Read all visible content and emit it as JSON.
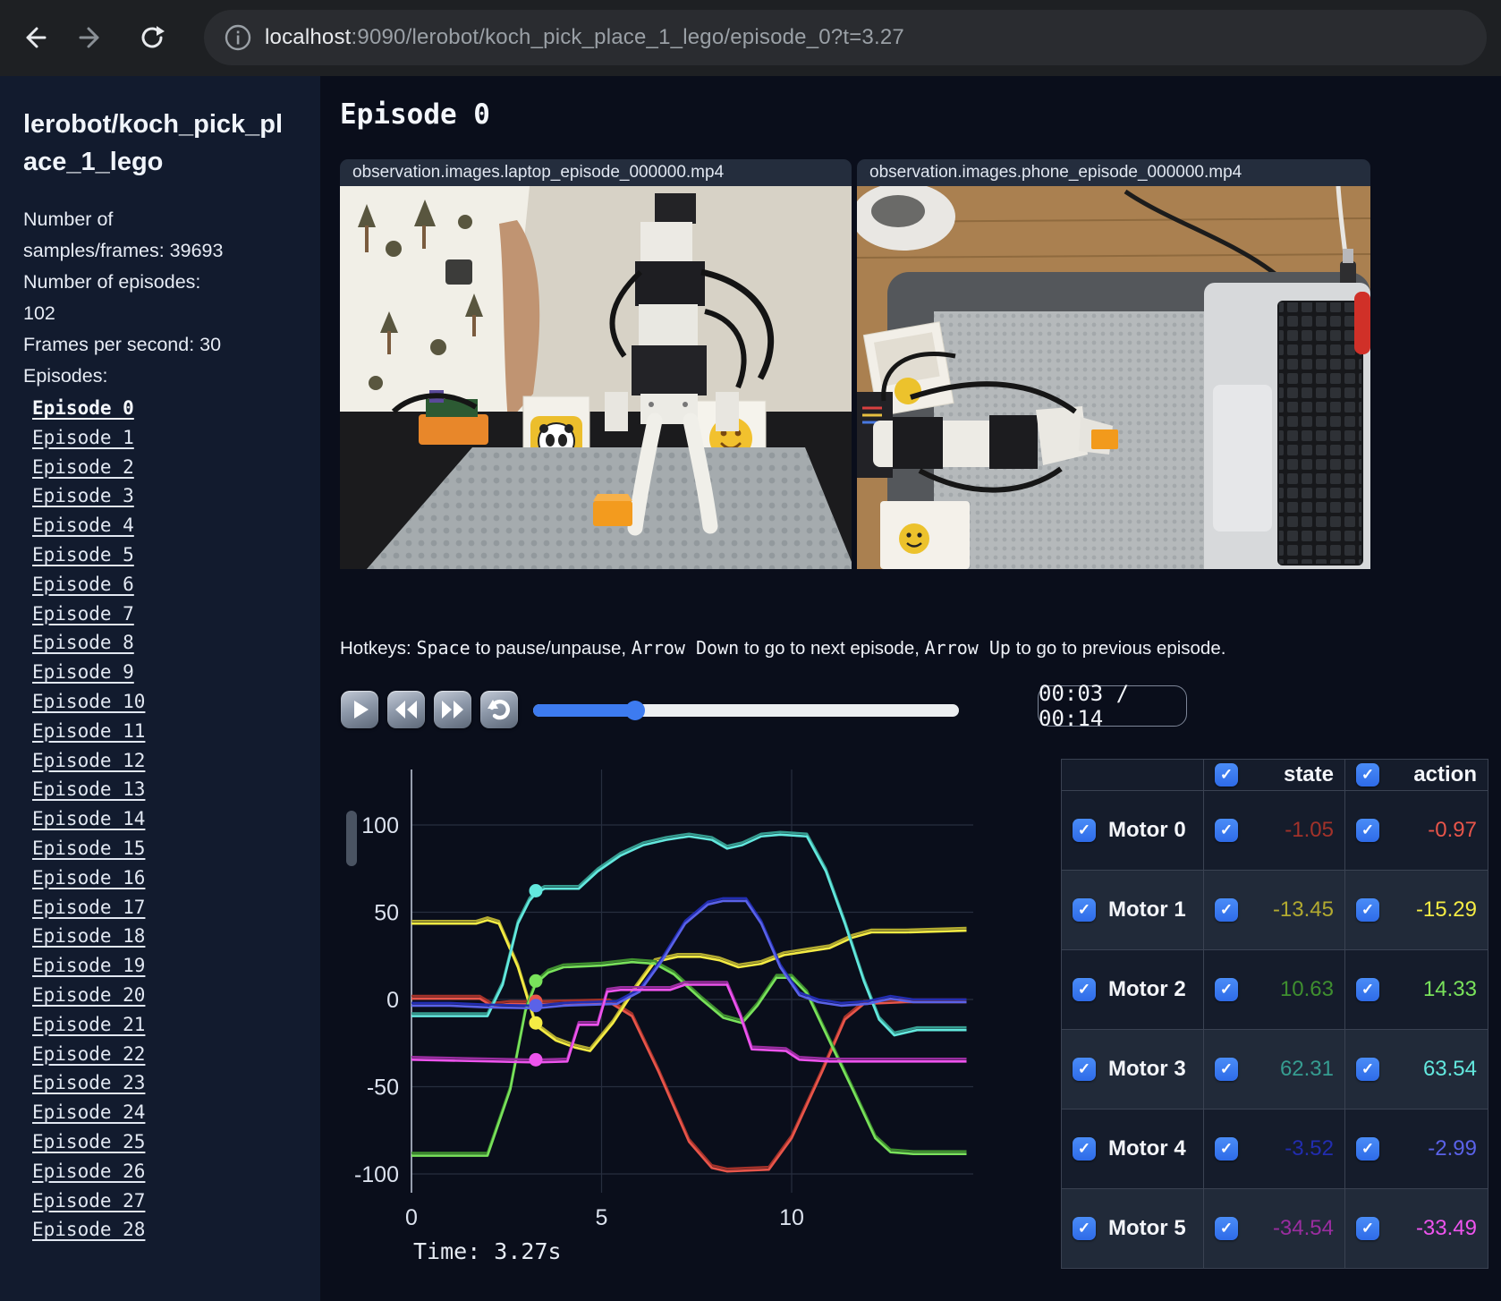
{
  "browser": {
    "url_host": "localhost",
    "url_rest": ":9090/lerobot/koch_pick_place_1_lego/episode_0?t=3.27"
  },
  "sidebar": {
    "title": "lerobot/koch_pick_place_1_lego",
    "stats": [
      "Number of samples/frames: 39693",
      "Number of episodes: 102",
      "Frames per second: 30"
    ],
    "episodes_heading": "Episodes:",
    "active_episode": "Episode 0",
    "episodes": [
      "Episode 0",
      "Episode 1",
      "Episode 2",
      "Episode 3",
      "Episode 4",
      "Episode 5",
      "Episode 6",
      "Episode 7",
      "Episode 8",
      "Episode 9",
      "Episode 10",
      "Episode 11",
      "Episode 12",
      "Episode 13",
      "Episode 14",
      "Episode 15",
      "Episode 16",
      "Episode 17",
      "Episode 18",
      "Episode 19",
      "Episode 20",
      "Episode 21",
      "Episode 22",
      "Episode 23",
      "Episode 24",
      "Episode 25",
      "Episode 26",
      "Episode 27",
      "Episode 28"
    ]
  },
  "main": {
    "title": "Episode 0",
    "videos": [
      {
        "filename": "observation.images.laptop_episode_000000.mp4"
      },
      {
        "filename": "observation.images.phone_episode_000000.mp4"
      }
    ],
    "hotkeys_segments": [
      {
        "t": "Hotkeys: ",
        "mono": false
      },
      {
        "t": "Space",
        "mono": true
      },
      {
        "t": " to pause/unpause, ",
        "mono": false
      },
      {
        "t": "Arrow Down",
        "mono": true
      },
      {
        "t": " to go to next episode, ",
        "mono": false
      },
      {
        "t": "Arrow Up",
        "mono": true
      },
      {
        "t": " to go to previous episode.",
        "mono": false
      }
    ],
    "player": {
      "time_display": "00:03 / 00:14",
      "progress_pct": 24
    }
  },
  "table": {
    "state_label": "state",
    "action_label": "action"
  },
  "chart_data": {
    "type": "line",
    "title": "",
    "xlabel": "",
    "ylabel": "",
    "xlim": [
      0,
      14.8
    ],
    "ylim": [
      -115,
      112
    ],
    "xticks": [
      0,
      5,
      10
    ],
    "yticks": [
      100,
      50,
      0,
      -50,
      -100
    ],
    "grid": true,
    "current_time": 3.27,
    "time_label": "Time: 3.27s",
    "series": [
      {
        "name": "Motor 0",
        "state_value": -1.05,
        "action_value": -0.97,
        "state_color": "#a2322a",
        "action_color": "#e8554a",
        "points": [
          [
            0,
            2
          ],
          [
            1.8,
            2
          ],
          [
            2.1,
            -2
          ],
          [
            2.6,
            -1
          ],
          [
            3.27,
            -1.05
          ],
          [
            5.2,
            0
          ],
          [
            5.8,
            -8
          ],
          [
            6.5,
            -40
          ],
          [
            7.3,
            -80
          ],
          [
            7.9,
            -95
          ],
          [
            8.3,
            -97
          ],
          [
            9.4,
            -96
          ],
          [
            10.0,
            -78
          ],
          [
            10.8,
            -40
          ],
          [
            11.4,
            -10
          ],
          [
            11.9,
            -1
          ],
          [
            13,
            0
          ],
          [
            14.6,
            0
          ]
        ]
      },
      {
        "name": "Motor 1",
        "state_value": -13.45,
        "action_value": -15.29,
        "state_color": "#b2aa30",
        "action_color": "#f5ec44",
        "points": [
          [
            0,
            45
          ],
          [
            1.7,
            45
          ],
          [
            2.0,
            47
          ],
          [
            2.3,
            45
          ],
          [
            2.8,
            20
          ],
          [
            3.27,
            -13.45
          ],
          [
            3.8,
            -22
          ],
          [
            4.3,
            -26
          ],
          [
            4.7,
            -28
          ],
          [
            5.3,
            -12
          ],
          [
            5.9,
            8
          ],
          [
            6.4,
            23
          ],
          [
            7.0,
            26
          ],
          [
            7.6,
            26
          ],
          [
            8.1,
            24
          ],
          [
            8.6,
            20
          ],
          [
            9.2,
            22
          ],
          [
            9.8,
            27
          ],
          [
            10.4,
            29
          ],
          [
            11.0,
            31
          ],
          [
            11.6,
            37
          ],
          [
            12.1,
            40
          ],
          [
            13,
            40
          ],
          [
            14.6,
            41
          ]
        ]
      },
      {
        "name": "Motor 2",
        "state_value": 10.63,
        "action_value": 14.33,
        "state_color": "#3f8f2f",
        "action_color": "#79e25b",
        "points": [
          [
            0,
            -88
          ],
          [
            2.0,
            -88
          ],
          [
            2.6,
            -50
          ],
          [
            3.0,
            -5
          ],
          [
            3.27,
            10.63
          ],
          [
            3.6,
            17
          ],
          [
            4,
            20
          ],
          [
            5,
            21
          ],
          [
            5.8,
            23
          ],
          [
            6.4,
            22
          ],
          [
            6.9,
            16
          ],
          [
            7.6,
            2
          ],
          [
            8.2,
            -9
          ],
          [
            8.7,
            -12
          ],
          [
            9.1,
            -2
          ],
          [
            9.6,
            14
          ],
          [
            10.0,
            14
          ],
          [
            10.4,
            5
          ],
          [
            10.9,
            -18
          ],
          [
            11.6,
            -50
          ],
          [
            12.2,
            -78
          ],
          [
            12.6,
            -86
          ],
          [
            13.2,
            -87
          ],
          [
            14.6,
            -87
          ]
        ]
      },
      {
        "name": "Motor 3",
        "state_value": 62.31,
        "action_value": 63.54,
        "state_color": "#369c90",
        "action_color": "#63e8de",
        "points": [
          [
            0,
            -8
          ],
          [
            2.0,
            -8
          ],
          [
            2.4,
            10
          ],
          [
            2.8,
            45
          ],
          [
            3.1,
            58
          ],
          [
            3.27,
            62.31
          ],
          [
            3.5,
            65
          ],
          [
            4.4,
            65
          ],
          [
            4.9,
            75
          ],
          [
            5.5,
            84
          ],
          [
            6.1,
            90
          ],
          [
            6.7,
            93
          ],
          [
            7.3,
            95
          ],
          [
            7.9,
            93
          ],
          [
            8.3,
            88
          ],
          [
            8.7,
            90
          ],
          [
            9.2,
            95
          ],
          [
            9.7,
            96
          ],
          [
            10.4,
            95
          ],
          [
            10.9,
            75
          ],
          [
            11.4,
            45
          ],
          [
            11.9,
            12
          ],
          [
            12.3,
            -10
          ],
          [
            12.7,
            -19
          ],
          [
            13.3,
            -16
          ],
          [
            14.6,
            -16
          ]
        ]
      },
      {
        "name": "Motor 4",
        "state_value": -3.52,
        "action_value": -2.99,
        "state_color": "#222db0",
        "action_color": "#5a62e8",
        "points": [
          [
            0,
            -2
          ],
          [
            1,
            -2
          ],
          [
            2,
            -3
          ],
          [
            3.27,
            -3.52
          ],
          [
            4,
            -2
          ],
          [
            5.4,
            -1
          ],
          [
            6,
            6
          ],
          [
            6.6,
            24
          ],
          [
            7.2,
            45
          ],
          [
            7.8,
            56
          ],
          [
            8.2,
            58
          ],
          [
            8.8,
            58
          ],
          [
            9.2,
            45
          ],
          [
            9.7,
            20
          ],
          [
            10.2,
            4
          ],
          [
            10.7,
            0
          ],
          [
            11.3,
            -2
          ],
          [
            12,
            -1
          ],
          [
            12.6,
            2
          ],
          [
            13.2,
            0
          ],
          [
            14.6,
            0
          ]
        ]
      },
      {
        "name": "Motor 5",
        "state_value": -34.54,
        "action_value": -33.49,
        "state_color": "#9a2da0",
        "action_color": "#ee54ee",
        "points": [
          [
            0,
            -33
          ],
          [
            3.27,
            -34.54
          ],
          [
            4.1,
            -34
          ],
          [
            4.4,
            -13
          ],
          [
            4.9,
            -13
          ],
          [
            5.15,
            6
          ],
          [
            5.5,
            7
          ],
          [
            6.8,
            7
          ],
          [
            7.2,
            10
          ],
          [
            8.3,
            10
          ],
          [
            8.65,
            -8
          ],
          [
            8.95,
            -27
          ],
          [
            9.85,
            -28
          ],
          [
            10.2,
            -33
          ],
          [
            11,
            -34
          ],
          [
            14.6,
            -34
          ]
        ]
      }
    ]
  }
}
